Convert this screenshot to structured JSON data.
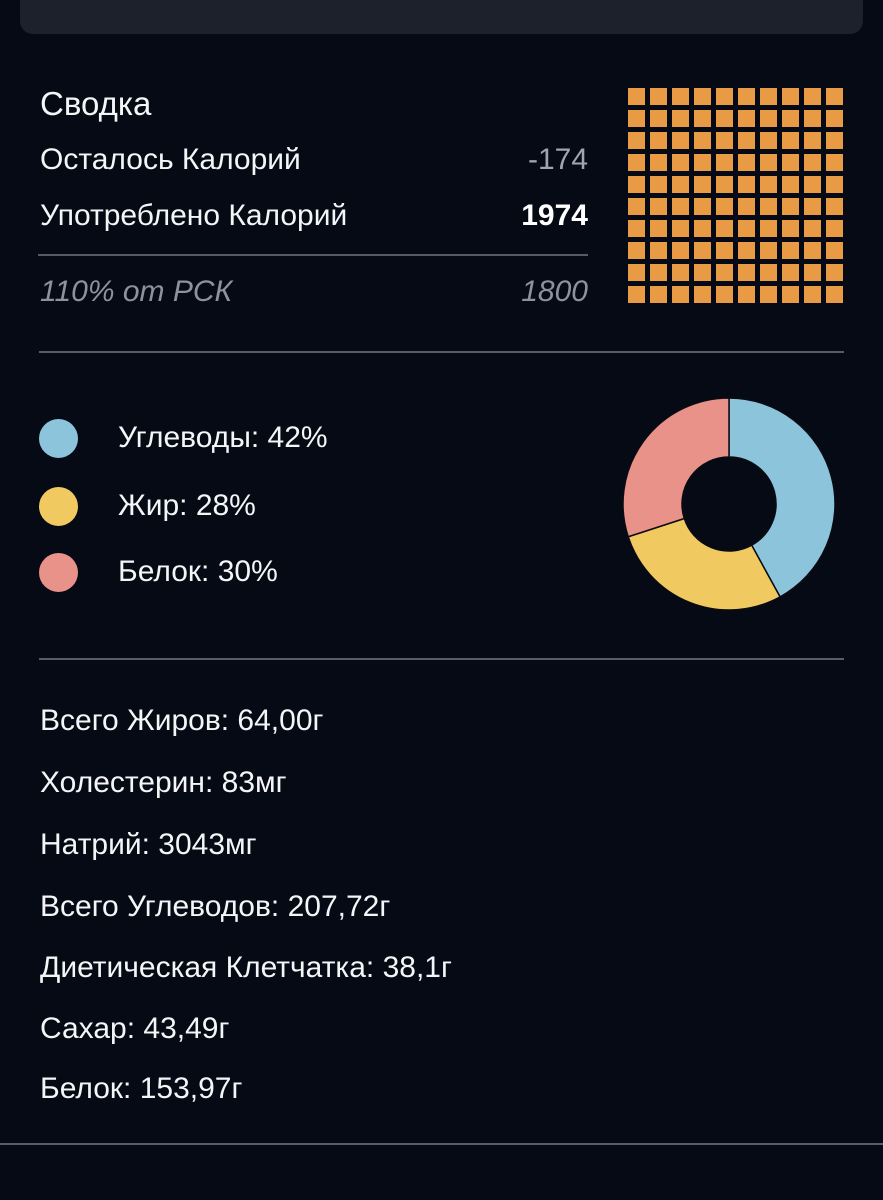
{
  "summary": {
    "title": "Сводка",
    "rows": [
      {
        "label": "Осталось Калорий",
        "value": "-174"
      },
      {
        "label": "Употреблено Калорий",
        "value": "1974"
      }
    ],
    "rsk": {
      "label": "110% от РСК",
      "value": "1800"
    },
    "waffle": {
      "rows": 10,
      "cols": 10,
      "filled": 100,
      "color": "#e99a45"
    }
  },
  "macros": {
    "items": [
      {
        "label": "Углеводы: 42%",
        "name": "Углеводы",
        "percent": 42,
        "color": "#8cc4dc"
      },
      {
        "label": "Жир: 28%",
        "name": "Жир",
        "percent": 28,
        "color": "#f0c960"
      },
      {
        "label": "Белок: 30%",
        "name": "Белок",
        "percent": 30,
        "color": "#e8928a"
      }
    ]
  },
  "nutrients": [
    {
      "text": "Всего Жиров: 64,00г"
    },
    {
      "text": "Холестерин: 83мг"
    },
    {
      "text": "Натрий: 3043мг"
    },
    {
      "text": "Всего Углеводов: 207,72г"
    },
    {
      "text": "Диетическая Клетчатка: 38,1г"
    },
    {
      "text": "Сахар: 43,49г"
    },
    {
      "text": "Белок: 153,97г"
    }
  ],
  "chart_data": [
    {
      "type": "pie",
      "title": "",
      "categories": [
        "Углеводы",
        "Жир",
        "Белок"
      ],
      "values": [
        42,
        28,
        30
      ],
      "colors": [
        "#8cc4dc",
        "#f0c960",
        "#e8928a"
      ],
      "donut": true,
      "legend_position": "left"
    },
    {
      "type": "heatmap",
      "title": "",
      "grid": [
        10,
        10
      ],
      "filled_cells": 100,
      "color": "#e99a45"
    }
  ]
}
